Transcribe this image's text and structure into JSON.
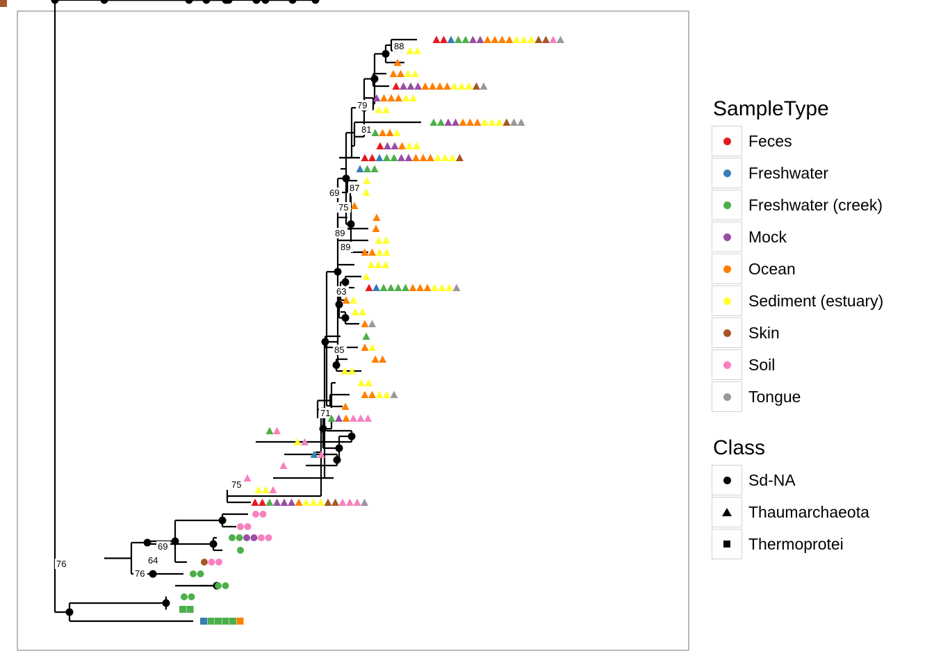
{
  "colors": {
    "Feces": "#e41a1c",
    "Freshwater": "#377eb8",
    "Freshwater (creek)": "#4daf4a",
    "Mock": "#984ea3",
    "Ocean": "#ff7f00",
    "Sediment (estuary)": "#ffff33",
    "Skin": "#a65628",
    "Soil": "#f781bf",
    "Tongue": "#999999"
  },
  "legend": {
    "sample_type": {
      "title": "SampleType",
      "items": [
        "Feces",
        "Freshwater",
        "Freshwater (creek)",
        "Mock",
        "Ocean",
        "Sediment (estuary)",
        "Skin",
        "Soil",
        "Tongue"
      ]
    },
    "class": {
      "title": "Class",
      "items": [
        {
          "label": "Sd-NA",
          "shape": "circle"
        },
        {
          "label": "Thaumarchaeota",
          "shape": "triangle"
        },
        {
          "label": "Thermoprotei",
          "shape": "square"
        }
      ]
    }
  },
  "bootstrap_labels": [
    "88",
    "79",
    "81",
    "69",
    "87",
    "75",
    "89",
    "89",
    "63",
    "85",
    "71",
    "75",
    "69",
    "64",
    "76",
    "76"
  ],
  "tips": [
    {
      "shape": "triangle",
      "samples": [
        "Feces",
        "Feces",
        "Freshwater",
        "Freshwater (creek)",
        "Freshwater (creek)",
        "Mock",
        "Mock",
        "Ocean",
        "Ocean",
        "Ocean",
        "Ocean",
        "Sediment (estuary)",
        "Sediment (estuary)",
        "Sediment (estuary)",
        "Skin",
        "Skin",
        "Soil",
        "Tongue"
      ]
    },
    {
      "shape": "triangle",
      "samples": [
        "Sediment (estuary)",
        "Sediment (estuary)"
      ]
    },
    {
      "shape": "triangle",
      "samples": [
        "Ocean"
      ]
    },
    {
      "shape": "triangle",
      "samples": [
        "Ocean",
        "Ocean",
        "Sediment (estuary)",
        "Sediment (estuary)"
      ]
    },
    {
      "shape": "triangle",
      "samples": [
        "Feces",
        "Mock",
        "Mock",
        "Mock",
        "Ocean",
        "Ocean",
        "Ocean",
        "Ocean",
        "Sediment (estuary)",
        "Sediment (estuary)",
        "Sediment (estuary)",
        "Skin",
        "Tongue"
      ]
    },
    {
      "shape": "triangle",
      "samples": [
        "Mock",
        "Ocean",
        "Ocean",
        "Ocean",
        "Sediment (estuary)",
        "Sediment (estuary)"
      ]
    },
    {
      "shape": "triangle",
      "samples": [
        "Sediment (estuary)",
        "Sediment (estuary)"
      ]
    },
    {
      "shape": "triangle",
      "samples": [
        "Freshwater (creek)",
        "Freshwater (creek)",
        "Mock",
        "Mock",
        "Ocean",
        "Ocean",
        "Ocean",
        "Sediment (estuary)",
        "Sediment (estuary)",
        "Sediment (estuary)",
        "Skin",
        "Tongue",
        "Tongue"
      ]
    },
    {
      "shape": "triangle",
      "samples": [
        "Freshwater (creek)",
        "Ocean",
        "Ocean",
        "Sediment (estuary)"
      ]
    },
    {
      "shape": "triangle",
      "samples": [
        "Feces",
        "Mock",
        "Mock",
        "Ocean",
        "Sediment (estuary)",
        "Sediment (estuary)"
      ]
    },
    {
      "shape": "triangle",
      "samples": [
        "Feces",
        "Feces",
        "Freshwater",
        "Freshwater (creek)",
        "Freshwater (creek)",
        "Mock",
        "Mock",
        "Ocean",
        "Ocean",
        "Ocean",
        "Sediment (estuary)",
        "Sediment (estuary)",
        "Sediment (estuary)",
        "Skin"
      ]
    },
    {
      "shape": "triangle",
      "samples": [
        "Freshwater",
        "Freshwater (creek)",
        "Freshwater (creek)"
      ]
    },
    {
      "shape": "triangle",
      "samples": [
        "Sediment (estuary)"
      ]
    },
    {
      "shape": "triangle",
      "samples": [
        "Sediment (estuary)"
      ]
    },
    {
      "shape": "triangle",
      "samples": [
        "Ocean"
      ]
    },
    {
      "shape": "triangle",
      "samples": [
        "Ocean"
      ]
    },
    {
      "shape": "triangle",
      "samples": [
        "Ocean"
      ]
    },
    {
      "shape": "triangle",
      "samples": [
        "Sediment (estuary)",
        "Sediment (estuary)"
      ]
    },
    {
      "shape": "triangle",
      "samples": [
        "Ocean",
        "Ocean",
        "Sediment (estuary)",
        "Sediment (estuary)"
      ]
    },
    {
      "shape": "triangle",
      "samples": [
        "Sediment (estuary)",
        "Sediment (estuary)",
        "Sediment (estuary)"
      ]
    },
    {
      "shape": "triangle",
      "samples": [
        "Sediment (estuary)"
      ]
    },
    {
      "shape": "triangle",
      "samples": [
        "Feces",
        "Freshwater",
        "Freshwater (creek)",
        "Freshwater (creek)",
        "Freshwater (creek)",
        "Freshwater (creek)",
        "Ocean",
        "Ocean",
        "Ocean",
        "Sediment (estuary)",
        "Sediment (estuary)",
        "Sediment (estuary)",
        "Tongue"
      ]
    },
    {
      "shape": "triangle",
      "samples": [
        "Ocean",
        "Sediment (estuary)"
      ]
    },
    {
      "shape": "triangle",
      "samples": [
        "Sediment (estuary)",
        "Sediment (estuary)"
      ]
    },
    {
      "shape": "triangle",
      "samples": [
        "Ocean",
        "Tongue"
      ]
    },
    {
      "shape": "triangle",
      "samples": [
        "Freshwater (creek)"
      ]
    },
    {
      "shape": "triangle",
      "samples": [
        "Ocean",
        "Sediment (estuary)"
      ]
    },
    {
      "shape": "triangle",
      "samples": [
        "Ocean",
        "Ocean"
      ]
    },
    {
      "shape": "triangle",
      "samples": [
        "Sediment (estuary)",
        "Sediment (estuary)"
      ]
    },
    {
      "shape": "triangle",
      "samples": [
        "Sediment (estuary)",
        "Sediment (estuary)"
      ]
    },
    {
      "shape": "triangle",
      "samples": [
        "Ocean",
        "Ocean",
        "Sediment (estuary)",
        "Sediment (estuary)",
        "Tongue"
      ]
    },
    {
      "shape": "triangle",
      "samples": [
        "Ocean"
      ]
    },
    {
      "shape": "triangle",
      "samples": [
        "Freshwater (creek)",
        "Mock",
        "Ocean",
        "Soil",
        "Soil",
        "Soil"
      ]
    },
    {
      "shape": "triangle",
      "samples": [
        "Freshwater (creek)",
        "Soil"
      ]
    },
    {
      "shape": "triangle",
      "samples": [
        "Sediment (estuary)",
        "Soil"
      ]
    },
    {
      "shape": "triangle",
      "samples": [
        "Freshwater",
        "Soil"
      ]
    },
    {
      "shape": "triangle",
      "samples": [
        "Soil"
      ]
    },
    {
      "shape": "triangle",
      "samples": [
        "Soil"
      ]
    },
    {
      "shape": "triangle",
      "samples": [
        "Sediment (estuary)",
        "Sediment (estuary)",
        "Soil"
      ]
    },
    {
      "shape": "triangle",
      "samples": [
        "Feces",
        "Feces",
        "Freshwater (creek)",
        "Mock",
        "Mock",
        "Mock",
        "Ocean",
        "Sediment (estuary)",
        "Sediment (estuary)",
        "Sediment (estuary)",
        "Skin",
        "Skin",
        "Soil",
        "Soil",
        "Soil",
        "Tongue"
      ]
    },
    {
      "shape": "circle",
      "samples": [
        "Soil",
        "Soil"
      ]
    },
    {
      "shape": "circle",
      "samples": [
        "Soil",
        "Soil"
      ]
    },
    {
      "shape": "circle",
      "samples": [
        "Freshwater (creek)",
        "Freshwater (creek)",
        "Mock",
        "Mock",
        "Soil",
        "Soil"
      ]
    },
    {
      "shape": "circle",
      "samples": [
        "Freshwater (creek)"
      ]
    },
    {
      "shape": "circle",
      "samples": [
        "Skin",
        "Soil",
        "Soil"
      ]
    },
    {
      "shape": "circle",
      "samples": [
        "Freshwater (creek)",
        "Freshwater (creek)"
      ]
    },
    {
      "shape": "circle",
      "samples": [
        "Freshwater (creek)",
        "Freshwater (creek)"
      ]
    },
    {
      "shape": "circle",
      "samples": [
        "Freshwater (creek)",
        "Freshwater (creek)"
      ]
    },
    {
      "shape": "square",
      "samples": [
        "Freshwater (creek)",
        "Freshwater (creek)"
      ]
    },
    {
      "shape": "square",
      "samples": [
        "Freshwater",
        "Freshwater (creek)",
        "Freshwater (creek)",
        "Freshwater (creek)",
        "Freshwater (creek)",
        "Ocean"
      ]
    },
    {
      "shape": "square",
      "samples": [
        "Skin"
      ]
    }
  ]
}
